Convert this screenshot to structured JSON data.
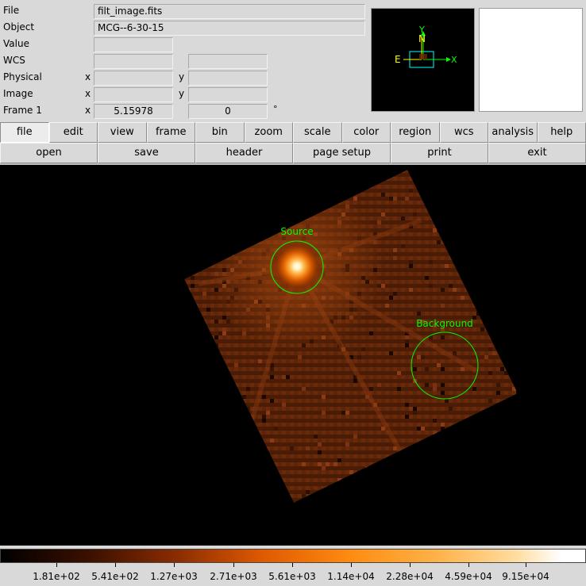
{
  "info": {
    "file_label": "File",
    "file_value": "filt_image.fits",
    "object_label": "Object",
    "object_value": "MCG--6-30-15",
    "value_label": "Value",
    "value_value": "",
    "wcs_label": "WCS",
    "wcs_x": "",
    "wcs_y": "",
    "physical_label": "Physical",
    "physical_x_axis": "x",
    "physical_x": "",
    "physical_y_axis": "y",
    "physical_y": "",
    "image_label": "Image",
    "image_x_axis": "x",
    "image_x": "",
    "image_y_axis": "y",
    "image_y": "",
    "frame_label": "Frame 1",
    "frame_x_axis": "x",
    "frame_zoom": "5.15978",
    "frame_angle": "0",
    "degree_symbol": "°"
  },
  "panner": {
    "north_label": "N",
    "y_label": "Y",
    "east_label": "E",
    "x_label": "X",
    "compass_color": "#ffff00",
    "axis_color": "#00ff00",
    "view_box_color": "#00ffff"
  },
  "menu_bar": [
    {
      "label": "file",
      "active": true
    },
    {
      "label": "edit"
    },
    {
      "label": "view"
    },
    {
      "label": "frame"
    },
    {
      "label": "bin"
    },
    {
      "label": "zoom"
    },
    {
      "label": "scale"
    },
    {
      "label": "color"
    },
    {
      "label": "region"
    },
    {
      "label": "wcs"
    },
    {
      "label": "analysis"
    },
    {
      "label": "help"
    }
  ],
  "button_bar": [
    {
      "label": "open"
    },
    {
      "label": "save"
    },
    {
      "label": "header"
    },
    {
      "label": "page setup"
    },
    {
      "label": "print"
    },
    {
      "label": "exit"
    }
  ],
  "regions": {
    "color": "#00ff00",
    "source_label": "Source",
    "background_label": "Background"
  },
  "colorbar": {
    "colormap": "heat",
    "tick_labels": [
      "1.81e+02",
      "5.41e+02",
      "1.27e+03",
      "2.71e+03",
      "5.61e+03",
      "1.14e+04",
      "2.28e+04",
      "4.59e+04",
      "9.15e+04"
    ]
  }
}
